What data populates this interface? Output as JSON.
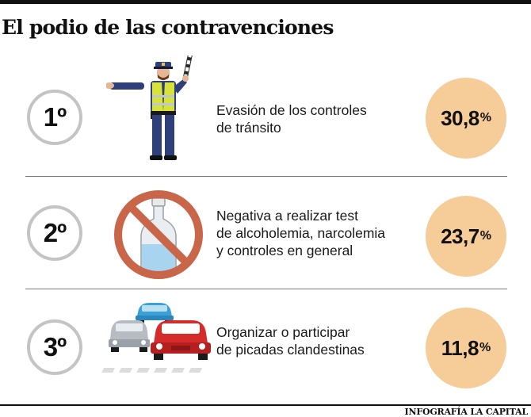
{
  "header": {
    "title": "El podio de las contravenciones"
  },
  "footer": {
    "credit": "INFOGRAFÍA LA CAPITAL"
  },
  "chart_data": {
    "type": "table",
    "title": "El podio de las contravenciones",
    "unit": "%",
    "rows": [
      {
        "rank": "1º",
        "icon": "traffic-police-icon",
        "label_lines": [
          "Evasión de los controles",
          "de tránsito"
        ],
        "value": 30.8,
        "value_text": "30,8"
      },
      {
        "rank": "2º",
        "icon": "no-alcohol-icon",
        "label_lines": [
          "Negativa a realizar test",
          "de alcoholemia, narcolemia",
          "y controles en general"
        ],
        "value": 23.7,
        "value_text": "23,7"
      },
      {
        "rank": "3º",
        "icon": "street-racing-cars-icon",
        "label_lines": [
          "Organizar o participar",
          "de picadas clandestinas"
        ],
        "value": 11.8,
        "value_text": "11,8"
      }
    ]
  },
  "colors": {
    "value_circle": "#f6cd99",
    "rank_ring": "#c4c4c4",
    "prohibition": "#c9664a"
  }
}
